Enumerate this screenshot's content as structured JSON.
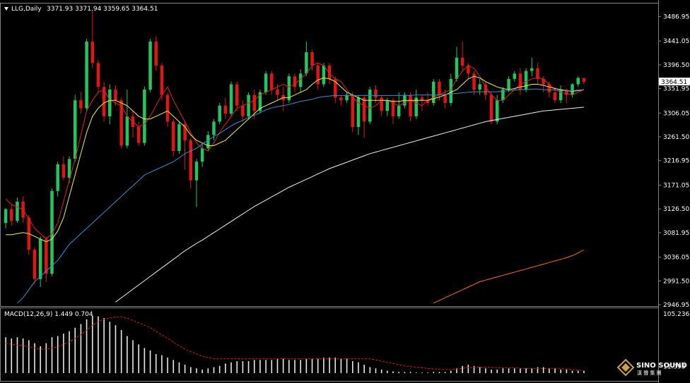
{
  "header": {
    "symbol_label": "LLG,Daily",
    "ohlc": "3371.93 3371.94 3359.65 3364.51",
    "indicator_label": "MACD(12,26,9) 1.449 0.704"
  },
  "price_box": "3364.51",
  "watermark": {
    "line1": "SINO SOUND",
    "line2": "漢 聲 集 團"
  },
  "colors": {
    "background": "#000000",
    "bull": "#22c55e",
    "bear": "#e01515",
    "ma_red": "#e02020",
    "ma_yellow": "#f2f23a",
    "ma_blue": "#2f8fd8",
    "ma_white": "#f0f0f0",
    "ma_orange": "#ff6a1a",
    "grid": "#808080"
  },
  "chart_data": {
    "type": "candlestick",
    "ylim": [
      2946.95,
      3510
    ],
    "y_ticks": [
      "3486.95",
      "3441.05",
      "3396.50",
      "3351.95",
      "3306.05",
      "3261.50",
      "3216.95",
      "3171.05",
      "3126.50",
      "3081.95",
      "3036.05",
      "2991.50",
      "2946.95"
    ],
    "last_price": 3364.51,
    "candles": [
      [
        3100,
        3126,
        3090,
        3128
      ],
      [
        3126,
        3104,
        3095,
        3135
      ],
      [
        3104,
        3140,
        3100,
        3148
      ],
      [
        3140,
        3110,
        3100,
        3150
      ],
      [
        3110,
        3050,
        3040,
        3115
      ],
      [
        3050,
        2995,
        2985,
        3055
      ],
      [
        2995,
        3070,
        2980,
        3075
      ],
      [
        3070,
        3005,
        2990,
        3075
      ],
      [
        3005,
        3160,
        3000,
        3165
      ],
      [
        3160,
        3210,
        3150,
        3215
      ],
      [
        3210,
        3185,
        3180,
        3225
      ],
      [
        3185,
        3220,
        3175,
        3225
      ],
      [
        3220,
        3330,
        3215,
        3340
      ],
      [
        3330,
        3315,
        3305,
        3345
      ],
      [
        3315,
        3440,
        3310,
        3445
      ],
      [
        3440,
        3400,
        3390,
        3498
      ],
      [
        3400,
        3355,
        3345,
        3405
      ],
      [
        3355,
        3300,
        3290,
        3365
      ],
      [
        3300,
        3350,
        3285,
        3360
      ],
      [
        3350,
        3330,
        3320,
        3358
      ],
      [
        3330,
        3245,
        3240,
        3335
      ],
      [
        3245,
        3300,
        3240,
        3350
      ],
      [
        3300,
        3280,
        3260,
        3310
      ],
      [
        3280,
        3250,
        3245,
        3290
      ],
      [
        3250,
        3350,
        3245,
        3356
      ],
      [
        3350,
        3440,
        3345,
        3445
      ],
      [
        3440,
        3395,
        3385,
        3450
      ],
      [
        3395,
        3340,
        3330,
        3400
      ],
      [
        3340,
        3290,
        3280,
        3345
      ],
      [
        3290,
        3235,
        3225,
        3295
      ],
      [
        3235,
        3285,
        3230,
        3290
      ],
      [
        3285,
        3255,
        3200,
        3290
      ],
      [
        3255,
        3180,
        3165,
        3260
      ],
      [
        3180,
        3215,
        3130,
        3220
      ],
      [
        3215,
        3240,
        3205,
        3250
      ],
      [
        3240,
        3265,
        3235,
        3272
      ],
      [
        3265,
        3290,
        3255,
        3295
      ],
      [
        3290,
        3320,
        3285,
        3325
      ],
      [
        3320,
        3305,
        3295,
        3335
      ],
      [
        3305,
        3360,
        3300,
        3365
      ],
      [
        3360,
        3320,
        3310,
        3365
      ],
      [
        3320,
        3300,
        3290,
        3330
      ],
      [
        3300,
        3340,
        3295,
        3345
      ],
      [
        3340,
        3310,
        3295,
        3350
      ],
      [
        3310,
        3345,
        3305,
        3350
      ],
      [
        3345,
        3380,
        3340,
        3385
      ],
      [
        3380,
        3350,
        3340,
        3385
      ],
      [
        3350,
        3340,
        3330,
        3360
      ],
      [
        3340,
        3330,
        3310,
        3355
      ],
      [
        3330,
        3375,
        3325,
        3380
      ],
      [
        3375,
        3355,
        3345,
        3380
      ],
      [
        3355,
        3380,
        3345,
        3388
      ],
      [
        3380,
        3420,
        3375,
        3440
      ],
      [
        3420,
        3395,
        3385,
        3425
      ],
      [
        3395,
        3360,
        3350,
        3400
      ],
      [
        3360,
        3395,
        3355,
        3400
      ],
      [
        3395,
        3370,
        3360,
        3400
      ],
      [
        3370,
        3335,
        3325,
        3375
      ],
      [
        3335,
        3330,
        3320,
        3340
      ],
      [
        3330,
        3340,
        3325,
        3345
      ],
      [
        3340,
        3280,
        3270,
        3345
      ],
      [
        3280,
        3335,
        3265,
        3340
      ],
      [
        3335,
        3290,
        3260,
        3340
      ],
      [
        3290,
        3350,
        3285,
        3355
      ],
      [
        3350,
        3335,
        3325,
        3358
      ],
      [
        3335,
        3310,
        3300,
        3340
      ],
      [
        3310,
        3330,
        3300,
        3335
      ],
      [
        3330,
        3300,
        3285,
        3335
      ],
      [
        3300,
        3320,
        3295,
        3345
      ],
      [
        3320,
        3340,
        3315,
        3345
      ],
      [
        3340,
        3300,
        3290,
        3345
      ],
      [
        3300,
        3335,
        3295,
        3350
      ],
      [
        3335,
        3330,
        3310,
        3340
      ],
      [
        3330,
        3325,
        3320,
        3345
      ],
      [
        3325,
        3365,
        3320,
        3370
      ],
      [
        3365,
        3340,
        3330,
        3370
      ],
      [
        3340,
        3325,
        3315,
        3350
      ],
      [
        3325,
        3370,
        3320,
        3380
      ],
      [
        3370,
        3410,
        3365,
        3430
      ],
      [
        3410,
        3395,
        3385,
        3440
      ],
      [
        3395,
        3380,
        3370,
        3400
      ],
      [
        3380,
        3350,
        3340,
        3385
      ],
      [
        3350,
        3360,
        3340,
        3370
      ],
      [
        3360,
        3340,
        3330,
        3365
      ],
      [
        3340,
        3290,
        3285,
        3345
      ],
      [
        3290,
        3330,
        3285,
        3340
      ],
      [
        3330,
        3350,
        3325,
        3355
      ],
      [
        3350,
        3370,
        3345,
        3375
      ],
      [
        3370,
        3380,
        3365,
        3385
      ],
      [
        3380,
        3350,
        3340,
        3390
      ],
      [
        3350,
        3385,
        3345,
        3390
      ],
      [
        3385,
        3390,
        3375,
        3410
      ],
      [
        3390,
        3370,
        3360,
        3400
      ],
      [
        3370,
        3360,
        3345,
        3375
      ],
      [
        3360,
        3345,
        3335,
        3365
      ],
      [
        3345,
        3330,
        3325,
        3355
      ],
      [
        3330,
        3350,
        3325,
        3358
      ],
      [
        3350,
        3340,
        3325,
        3352
      ],
      [
        3340,
        3360,
        3335,
        3362
      ],
      [
        3360,
        3371.93,
        3355,
        3375
      ],
      [
        3371.93,
        3364.51,
        3359.65,
        3371.94
      ]
    ],
    "indicators": {
      "ma_red": [
        3145,
        3135,
        3130,
        3125,
        3108,
        3090,
        3080,
        3070,
        3080,
        3100,
        3140,
        3180,
        3220,
        3265,
        3310,
        3330,
        3345,
        3350,
        3330,
        3325,
        3320,
        3300,
        3290,
        3280,
        3285,
        3300,
        3320,
        3340,
        3355,
        3330,
        3310,
        3290,
        3270,
        3250,
        3240,
        3235,
        3250,
        3270,
        3285,
        3300,
        3315,
        3320,
        3325,
        3330,
        3340,
        3345,
        3350,
        3355,
        3360,
        3355,
        3360,
        3370,
        3380,
        3395,
        3400,
        3395,
        3380,
        3370,
        3365,
        3350,
        3335,
        3325,
        3320,
        3315,
        3320,
        3330,
        3330,
        3325,
        3320,
        3325,
        3330,
        3325,
        3320,
        3330,
        3335,
        3340,
        3345,
        3350,
        3370,
        3385,
        3395,
        3390,
        3375,
        3355,
        3340,
        3330,
        3330,
        3340,
        3350,
        3360,
        3365,
        3370,
        3372,
        3370,
        3360,
        3350,
        3345,
        3342,
        3340,
        3345,
        3350
      ],
      "ma_yellow": [
        3078,
        3078,
        3080,
        3082,
        3080,
        3075,
        3070,
        3065,
        3070,
        3085,
        3110,
        3150,
        3190,
        3230,
        3270,
        3300,
        3315,
        3325,
        3330,
        3330,
        3325,
        3320,
        3310,
        3300,
        3295,
        3295,
        3300,
        3305,
        3310,
        3300,
        3290,
        3280,
        3265,
        3255,
        3250,
        3245,
        3245,
        3250,
        3255,
        3265,
        3275,
        3285,
        3295,
        3305,
        3315,
        3320,
        3325,
        3330,
        3335,
        3335,
        3340,
        3345,
        3350,
        3360,
        3368,
        3372,
        3370,
        3365,
        3355,
        3345,
        3340,
        3335,
        3330,
        3330,
        3330,
        3330,
        3330,
        3328,
        3328,
        3330,
        3330,
        3330,
        3330,
        3330,
        3333,
        3336,
        3340,
        3345,
        3350,
        3360,
        3370,
        3375,
        3372,
        3365,
        3360,
        3355,
        3352,
        3350,
        3352,
        3355,
        3357,
        3360,
        3360,
        3358,
        3355,
        3352,
        3350,
        3348,
        3347,
        3348,
        3350
      ],
      "ma_blue": [
        2935,
        2940,
        2950,
        2960,
        2975,
        2990,
        3000,
        3010,
        3020,
        3030,
        3045,
        3060,
        3070,
        3080,
        3090,
        3100,
        3110,
        3120,
        3130,
        3140,
        3150,
        3160,
        3170,
        3180,
        3190,
        3195,
        3200,
        3205,
        3210,
        3215,
        3222,
        3230,
        3235,
        3240,
        3248,
        3255,
        3262,
        3268,
        3275,
        3282,
        3288,
        3292,
        3298,
        3302,
        3307,
        3312,
        3316,
        3318,
        3320,
        3322,
        3325,
        3328,
        3330,
        3332,
        3335,
        3337,
        3338,
        3339,
        3339,
        3339,
        3339,
        3339,
        3339,
        3339,
        3339,
        3339,
        3339,
        3339,
        3339,
        3339,
        3339,
        3340,
        3340,
        3340,
        3340,
        3340,
        3341,
        3342,
        3343,
        3344,
        3345,
        3346,
        3346,
        3346,
        3346,
        3346,
        3347,
        3348,
        3349,
        3350,
        3350,
        3351,
        3351,
        3350,
        3350,
        3349,
        3348,
        3348,
        3348,
        3349,
        3350
      ],
      "ma_white": [
        2820,
        2825,
        2830,
        2836,
        2842,
        2848,
        2852,
        2858,
        2864,
        2870,
        2878,
        2886,
        2894,
        2902,
        2912,
        2920,
        2928,
        2936,
        2944,
        2952,
        2960,
        2968,
        2976,
        2984,
        2992,
        3000,
        3008,
        3016,
        3024,
        3032,
        3040,
        3048,
        3055,
        3062,
        3068,
        3075,
        3082,
        3089,
        3096,
        3103,
        3110,
        3117,
        3124,
        3131,
        3137,
        3143,
        3149,
        3155,
        3161,
        3167,
        3172,
        3177,
        3182,
        3187,
        3192,
        3197,
        3202,
        3206,
        3210,
        3214,
        3218,
        3222,
        3226,
        3230,
        3233,
        3236,
        3239,
        3242,
        3245,
        3248,
        3251,
        3254,
        3257,
        3260,
        3263,
        3266,
        3269,
        3272,
        3275,
        3278,
        3281,
        3284,
        3287,
        3290,
        3292,
        3294,
        3296,
        3298,
        3300,
        3302,
        3304,
        3306,
        3308,
        3310,
        3311,
        3312,
        3313,
        3314,
        3315,
        3316,
        3317
      ],
      "ma_orange": [
        2700,
        2702,
        2704,
        2706,
        2708,
        2710,
        2712,
        2714,
        2716,
        2718,
        2720,
        2722,
        2724,
        2726,
        2728,
        2730,
        2732,
        2734,
        2736,
        2738,
        2740,
        2742,
        2744,
        2746,
        2748,
        2750,
        2752,
        2754,
        2756,
        2758,
        2760,
        2762,
        2764,
        2766,
        2768,
        2770,
        2772,
        2774,
        2776,
        2778,
        2780,
        2782,
        2784,
        2786,
        2788,
        2790,
        2792,
        2794,
        2796,
        2798,
        2800,
        2802,
        2804,
        2806,
        2808,
        2810,
        2812,
        2814,
        2816,
        2818,
        2820,
        2822,
        2824,
        2826,
        2828,
        2830,
        2832,
        2834,
        2836,
        2838,
        2840,
        2842,
        2844,
        2945,
        2950,
        2955,
        2960,
        2965,
        2970,
        2975,
        2980,
        2985,
        2990,
        2993,
        2996,
        2999,
        3002,
        3005,
        3008,
        3011,
        3014,
        3017,
        3020,
        3023,
        3026,
        3029,
        3032,
        3035,
        3039,
        3044,
        3050
      ]
    },
    "macd": {
      "ylim": [
        -13,
        105
      ],
      "y_ticks": [
        "105.236",
        "11.393"
      ],
      "histogram": [
        60,
        58,
        60,
        58,
        55,
        50,
        45,
        50,
        60,
        62,
        66,
        70,
        76,
        82,
        90,
        96,
        95,
        92,
        86,
        80,
        72,
        62,
        55,
        48,
        42,
        38,
        32,
        30,
        26,
        22,
        18,
        14,
        10,
        8,
        6,
        8,
        10,
        12,
        16,
        18,
        20,
        20,
        20,
        22,
        22,
        22,
        22,
        24,
        24,
        22,
        22,
        22,
        24,
        24,
        24,
        26,
        26,
        26,
        24,
        24,
        20,
        18,
        14,
        10,
        8,
        6,
        4,
        3,
        2,
        2,
        2,
        1,
        1,
        1,
        2,
        2,
        2,
        4,
        8,
        12,
        14,
        12,
        10,
        8,
        6,
        6,
        8,
        8,
        8,
        8,
        8,
        8,
        10,
        10,
        8,
        8,
        6,
        6,
        4,
        4,
        4
      ],
      "signal": [
        50,
        48,
        47,
        46,
        44,
        42,
        40,
        40,
        42,
        44,
        48,
        52,
        58,
        64,
        72,
        80,
        86,
        90,
        92,
        94,
        94,
        92,
        88,
        84,
        80,
        76,
        70,
        64,
        58,
        52,
        46,
        40,
        36,
        32,
        28,
        26,
        24,
        24,
        24,
        24,
        24,
        24,
        24,
        24,
        24,
        24,
        24,
        24,
        24,
        24,
        24,
        24,
        24,
        24,
        24,
        24,
        24,
        24,
        24,
        24,
        24,
        24,
        24,
        24,
        22,
        20,
        18,
        16,
        14,
        12,
        11,
        10,
        9,
        8,
        7,
        6,
        6,
        6,
        7,
        8,
        9,
        10,
        10,
        10,
        10,
        9,
        9,
        9,
        9,
        8,
        8,
        8,
        8,
        8,
        8,
        8,
        8,
        7,
        6,
        5,
        4
      ]
    }
  }
}
